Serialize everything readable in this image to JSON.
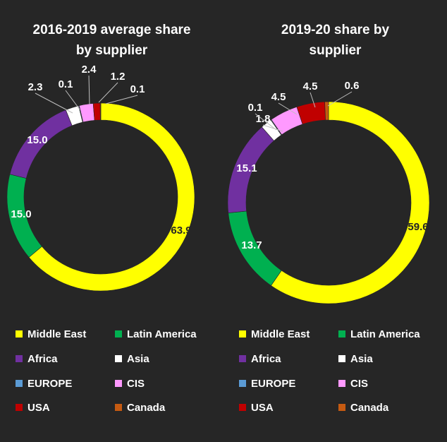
{
  "chart_data": [
    {
      "type": "pie",
      "variant": "donut",
      "title": [
        "2016-2019 average share",
        "by supplier"
      ],
      "categories": [
        "Middle East",
        "Latin America",
        "Africa",
        "Asia",
        "EUROPE",
        "CIS",
        "USA",
        "Canada"
      ],
      "values": [
        63.9,
        15.0,
        15.0,
        2.3,
        0.1,
        2.4,
        1.2,
        0.1
      ],
      "labels": [
        "63.9",
        "15.0",
        "15.0",
        "2.3",
        "0.1",
        "2.4",
        "1.2",
        "0.1"
      ],
      "colors": [
        "#ffff00",
        "#00b050",
        "#7030a0",
        "#ffffff",
        "#5b9bd5",
        "#ff99ff",
        "#c00000",
        "#c55a11"
      ],
      "legend_position": "bottom"
    },
    {
      "type": "pie",
      "variant": "donut",
      "title": [
        "2019-20 share by",
        "supplier"
      ],
      "categories": [
        "Middle East",
        "Latin America",
        "Africa",
        "Asia",
        "EUROPE",
        "CIS",
        "USA",
        "Canada"
      ],
      "values": [
        59.6,
        13.7,
        15.1,
        1.8,
        0.1,
        4.5,
        4.5,
        0.6
      ],
      "labels": [
        "59.6",
        "13.7",
        "15.1",
        "1.8",
        "0.1",
        "4.5",
        "4.5",
        "0.6"
      ],
      "colors": [
        "#ffff00",
        "#00b050",
        "#7030a0",
        "#ffffff",
        "#5b9bd5",
        "#ff99ff",
        "#c00000",
        "#c55a11"
      ],
      "legend_position": "bottom"
    }
  ]
}
